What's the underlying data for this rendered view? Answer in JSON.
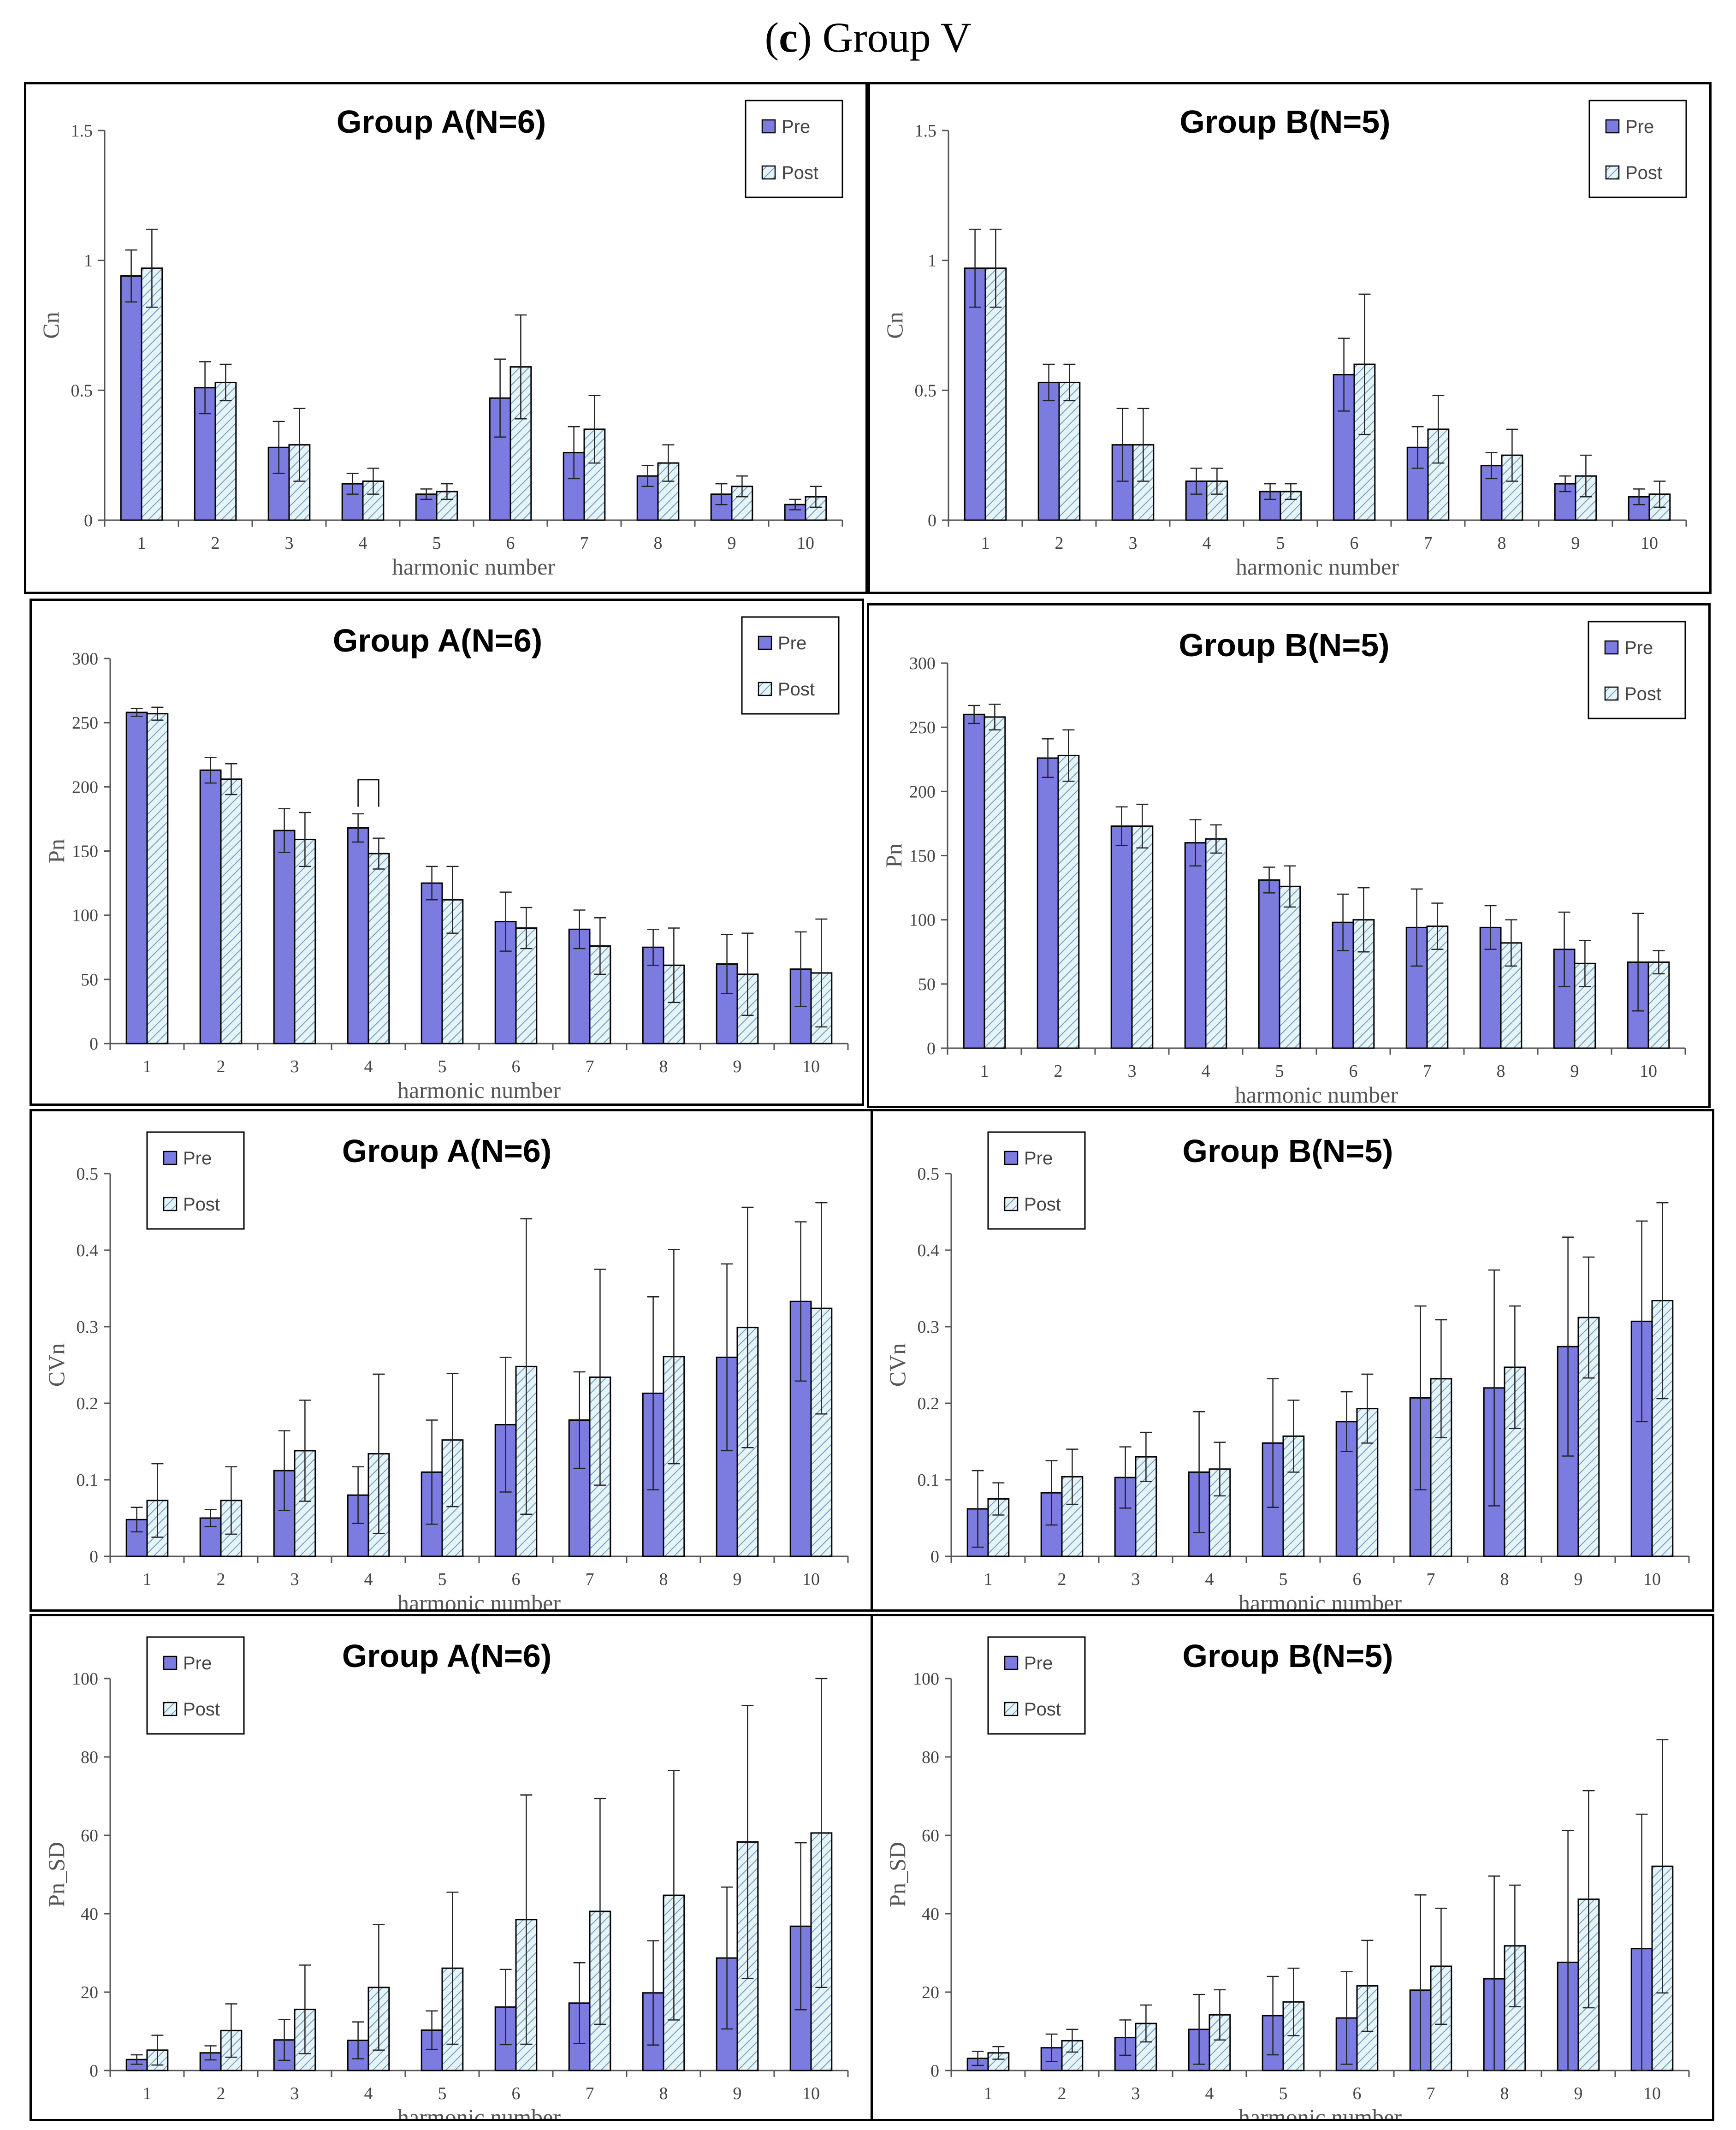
{
  "figure_title": {
    "prefix": "(",
    "letter": "c",
    "suffix": ") Group V"
  },
  "colors": {
    "pre": "#7b7be0",
    "post_fill": "#e6f4f8",
    "post_hatch": "#6f9fc7",
    "axis": "#555555",
    "error": "#222222"
  },
  "legend": {
    "pre": "Pre",
    "post": "Post"
  },
  "chart_data": [
    {
      "type": "bar",
      "title": "Group A(N=6)",
      "xlabel": "harmonic number",
      "ylabel": "Cn",
      "categories": [
        "1",
        "2",
        "3",
        "4",
        "5",
        "6",
        "7",
        "8",
        "9",
        "10"
      ],
      "ylim": [
        0,
        1.5
      ],
      "yticks": [
        "0",
        "0.5",
        "1",
        "1.5"
      ],
      "ytick_values": [
        0,
        0.5,
        1,
        1.5
      ],
      "legend_position": "top-right",
      "grid": false,
      "series": [
        {
          "name": "Pre",
          "values": [
            0.94,
            0.51,
            0.28,
            0.14,
            0.1,
            0.47,
            0.26,
            0.17,
            0.1,
            0.06
          ],
          "err": [
            0.1,
            0.1,
            0.1,
            0.04,
            0.02,
            0.15,
            0.1,
            0.04,
            0.04,
            0.02
          ]
        },
        {
          "name": "Post",
          "values": [
            0.97,
            0.53,
            0.29,
            0.15,
            0.11,
            0.59,
            0.35,
            0.22,
            0.13,
            0.09
          ],
          "err": [
            0.15,
            0.07,
            0.14,
            0.05,
            0.03,
            0.2,
            0.13,
            0.07,
            0.04,
            0.04
          ]
        }
      ]
    },
    {
      "type": "bar",
      "title": "Group B(N=5)",
      "xlabel": "harmonic number",
      "ylabel": "Cn",
      "categories": [
        "1",
        "2",
        "3",
        "4",
        "5",
        "6",
        "7",
        "8",
        "9",
        "10"
      ],
      "ylim": [
        0,
        1.5
      ],
      "yticks": [
        "0",
        "0.5",
        "1",
        "1.5"
      ],
      "ytick_values": [
        0,
        0.5,
        1,
        1.5
      ],
      "legend_position": "top-right",
      "grid": false,
      "series": [
        {
          "name": "Pre",
          "values": [
            0.97,
            0.53,
            0.29,
            0.15,
            0.11,
            0.56,
            0.28,
            0.21,
            0.14,
            0.09
          ],
          "err": [
            0.15,
            0.07,
            0.14,
            0.05,
            0.03,
            0.14,
            0.08,
            0.05,
            0.03,
            0.03
          ]
        },
        {
          "name": "Post",
          "values": [
            0.97,
            0.53,
            0.29,
            0.15,
            0.11,
            0.6,
            0.35,
            0.25,
            0.17,
            0.1
          ],
          "err": [
            0.15,
            0.07,
            0.14,
            0.05,
            0.03,
            0.27,
            0.13,
            0.1,
            0.08,
            0.05
          ]
        }
      ]
    },
    {
      "type": "bar",
      "title": "Group A(N=6)",
      "xlabel": "harmonic number",
      "ylabel": "Pn",
      "categories": [
        "1",
        "2",
        "3",
        "4",
        "5",
        "6",
        "7",
        "8",
        "9",
        "10"
      ],
      "ylim": [
        0,
        300
      ],
      "yticks": [
        "0",
        "50",
        "100",
        "150",
        "200",
        "250",
        "300"
      ],
      "ytick_values": [
        0,
        50,
        100,
        150,
        200,
        250,
        300
      ],
      "legend_position": "top-right",
      "grid": false,
      "significance_bracket_category": 4,
      "series": [
        {
          "name": "Pre",
          "values": [
            258,
            213,
            166,
            168,
            125,
            95,
            89,
            75,
            62,
            58
          ],
          "err": [
            3,
            10,
            17,
            11,
            13,
            23,
            15,
            14,
            23,
            29
          ]
        },
        {
          "name": "Post",
          "values": [
            257,
            206,
            159,
            148,
            112,
            90,
            76,
            61,
            54,
            55
          ],
          "err": [
            5,
            12,
            21,
            12,
            26,
            16,
            22,
            29,
            32,
            42
          ]
        }
      ]
    },
    {
      "type": "bar",
      "title": "Group B(N=5)",
      "xlabel": "harmonic number",
      "ylabel": "Pn",
      "categories": [
        "1",
        "2",
        "3",
        "4",
        "5",
        "6",
        "7",
        "8",
        "9",
        "10"
      ],
      "ylim": [
        0,
        300
      ],
      "yticks": [
        "0",
        "50",
        "100",
        "150",
        "200",
        "250",
        "300"
      ],
      "ytick_values": [
        0,
        50,
        100,
        150,
        200,
        250,
        300
      ],
      "legend_position": "top-right",
      "grid": false,
      "series": [
        {
          "name": "Pre",
          "values": [
            260,
            226,
            173,
            160,
            131,
            98,
            94,
            94,
            77,
            67
          ],
          "err": [
            7,
            15,
            15,
            18,
            10,
            22,
            30,
            17,
            29,
            38
          ]
        },
        {
          "name": "Post",
          "values": [
            258,
            228,
            173,
            163,
            126,
            100,
            95,
            82,
            66,
            67
          ],
          "err": [
            10,
            20,
            17,
            11,
            16,
            25,
            18,
            18,
            18,
            9
          ]
        }
      ]
    },
    {
      "type": "bar",
      "title": "Group A(N=6)",
      "xlabel": "harmonic number",
      "ylabel": "CVn",
      "categories": [
        "1",
        "2",
        "3",
        "4",
        "5",
        "6",
        "7",
        "8",
        "9",
        "10"
      ],
      "ylim": [
        0,
        0.5
      ],
      "yticks": [
        "0",
        "0.1",
        "0.2",
        "0.3",
        "0.4",
        "0.5"
      ],
      "ytick_values": [
        0,
        0.1,
        0.2,
        0.3,
        0.4,
        0.5
      ],
      "legend_position": "top-left",
      "grid": false,
      "series": [
        {
          "name": "Pre",
          "values": [
            0.048,
            0.05,
            0.112,
            0.08,
            0.11,
            0.172,
            0.178,
            0.213,
            0.26,
            0.333
          ],
          "err": [
            0.016,
            0.011,
            0.052,
            0.037,
            0.068,
            0.088,
            0.063,
            0.126,
            0.122,
            0.104
          ]
        },
        {
          "name": "Post",
          "values": [
            0.073,
            0.073,
            0.138,
            0.134,
            0.152,
            0.248,
            0.234,
            0.261,
            0.299,
            0.324
          ],
          "err": [
            0.048,
            0.044,
            0.066,
            0.104,
            0.087,
            0.193,
            0.141,
            0.14,
            0.157,
            0.138
          ]
        }
      ]
    },
    {
      "type": "bar",
      "title": "Group B(N=5)",
      "xlabel": "harmonic number",
      "ylabel": "CVn",
      "categories": [
        "1",
        "2",
        "3",
        "4",
        "5",
        "6",
        "7",
        "8",
        "9",
        "10"
      ],
      "ylim": [
        0,
        0.5
      ],
      "yticks": [
        "0",
        "0.1",
        "0.2",
        "0.3",
        "0.4",
        "0.5"
      ],
      "ytick_values": [
        0,
        0.1,
        0.2,
        0.3,
        0.4,
        0.5
      ],
      "legend_position": "top-left",
      "grid": false,
      "series": [
        {
          "name": "Pre",
          "values": [
            0.062,
            0.083,
            0.103,
            0.11,
            0.148,
            0.176,
            0.207,
            0.22,
            0.274,
            0.307
          ],
          "err": [
            0.05,
            0.042,
            0.04,
            0.079,
            0.084,
            0.039,
            0.12,
            0.154,
            0.143,
            0.131
          ]
        },
        {
          "name": "Post",
          "values": [
            0.075,
            0.104,
            0.13,
            0.114,
            0.157,
            0.193,
            0.232,
            0.247,
            0.312,
            0.334
          ],
          "err": [
            0.021,
            0.036,
            0.032,
            0.035,
            0.047,
            0.045,
            0.077,
            0.08,
            0.079,
            0.128
          ]
        }
      ]
    },
    {
      "type": "bar",
      "title": "Group A(N=6)",
      "xlabel": "harmonic number",
      "ylabel": "Pn_SD",
      "categories": [
        "1",
        "2",
        "3",
        "4",
        "5",
        "6",
        "7",
        "8",
        "9",
        "10"
      ],
      "ylim": [
        0,
        100
      ],
      "yticks": [
        "0",
        "20",
        "40",
        "60",
        "80",
        "100"
      ],
      "ytick_values": [
        0,
        20,
        40,
        60,
        80,
        100
      ],
      "legend_position": "top-left",
      "grid": false,
      "series": [
        {
          "name": "Pre",
          "values": [
            2.8,
            4.5,
            7.8,
            7.7,
            10.3,
            16.2,
            17.2,
            19.8,
            28.7,
            36.8
          ],
          "err": [
            1.2,
            1.8,
            5.2,
            4.7,
            4.9,
            9.6,
            10.3,
            13.3,
            18.1,
            21.3
          ]
        },
        {
          "name": "Post",
          "values": [
            5.2,
            10.2,
            15.6,
            21.2,
            26.1,
            38.5,
            40.6,
            44.7,
            58.3,
            60.6
          ],
          "err": [
            3.8,
            6.8,
            11.3,
            16.0,
            19.4,
            31.8,
            28.8,
            31.8,
            34.8,
            39.4
          ]
        }
      ]
    },
    {
      "type": "bar",
      "title": "Group B(N=5)",
      "xlabel": "harmonic number",
      "ylabel": "Pn_SD",
      "categories": [
        "1",
        "2",
        "3",
        "4",
        "5",
        "6",
        "7",
        "8",
        "9",
        "10"
      ],
      "ylim": [
        0,
        100
      ],
      "yticks": [
        "0",
        "20",
        "40",
        "60",
        "80",
        "100"
      ],
      "ytick_values": [
        0,
        20,
        40,
        60,
        80,
        100
      ],
      "legend_position": "top-left",
      "grid": false,
      "series": [
        {
          "name": "Pre",
          "values": [
            3.1,
            5.8,
            8.4,
            10.5,
            14.0,
            13.4,
            20.5,
            23.4,
            27.6,
            31.1
          ],
          "err": [
            1.8,
            3.5,
            4.5,
            8.9,
            10.0,
            11.8,
            24.3,
            26.2,
            33.6,
            34.3
          ]
        },
        {
          "name": "Post",
          "values": [
            4.5,
            7.6,
            12.0,
            14.2,
            17.5,
            21.6,
            26.6,
            31.8,
            43.7,
            52.1
          ],
          "err": [
            1.6,
            2.9,
            4.7,
            6.4,
            8.6,
            11.6,
            14.8,
            15.5,
            27.7,
            32.3
          ]
        }
      ]
    }
  ]
}
